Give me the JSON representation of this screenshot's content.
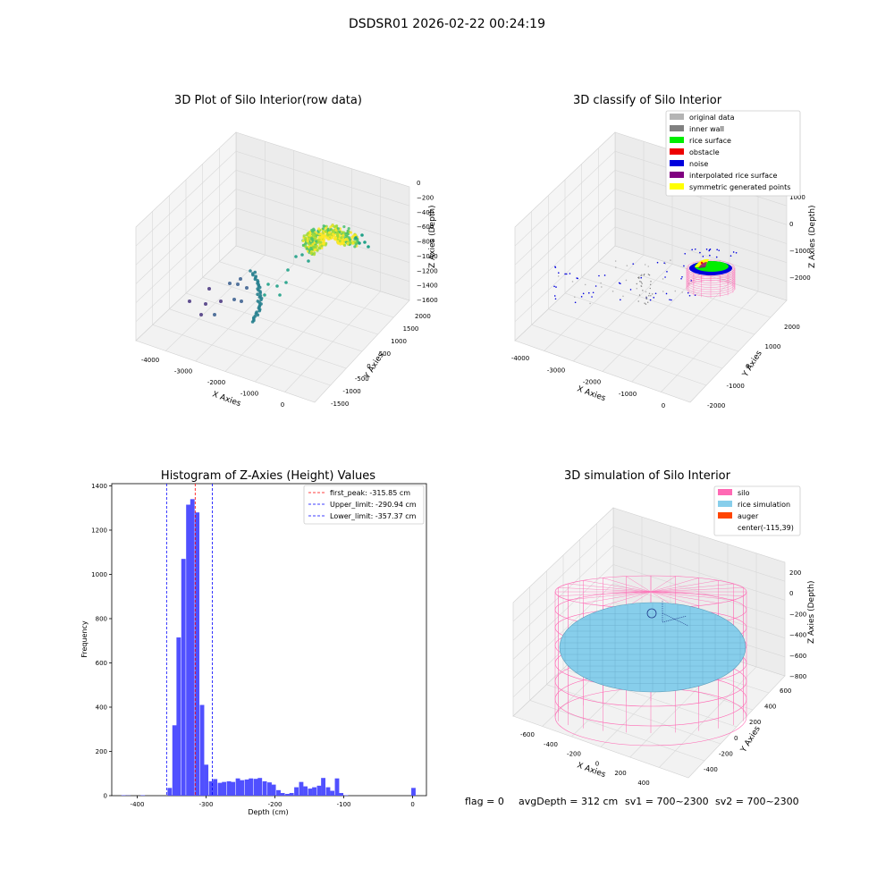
{
  "suptitle": "DSDSR01 2026-02-22 00:24:19",
  "status_line": {
    "flag": "flag = 0",
    "avg": "avgDepth = 312 cm",
    "sv1": "sv1 = 700~2300",
    "sv2": "sv2 = 700~2300"
  },
  "chart_data": [
    {
      "type": "scatter",
      "title": "3D Plot of Silo Interior(row data)",
      "xlabel": "X Axies",
      "ylabel": "Y Axies",
      "zlabel": "Z Axies (Depth)",
      "x_ticks": [
        "-4000",
        "-3000",
        "-2000",
        "-1000",
        "0"
      ],
      "y_ticks": [
        "-1500",
        "-1000",
        "-500",
        "0",
        "500",
        "1000",
        "1500",
        "2000"
      ],
      "z_ticks": [
        "0",
        "−200",
        "−400",
        "−600",
        "−800",
        "−1000",
        "−1200",
        "−1400",
        "−1600"
      ],
      "xlim": [
        -4300,
        300
      ],
      "ylim": [
        -1600,
        2100
      ],
      "zlim": [
        -1700,
        50
      ],
      "colormap": "viridis (by depth)"
    },
    {
      "type": "scatter",
      "title": "3D classify of Silo Interior",
      "xlabel": "X Axies",
      "ylabel": "Y Axies",
      "zlabel": "Z Axies (Depth)",
      "x_ticks": [
        "-4000",
        "-3000",
        "-2000",
        "-1000",
        "0"
      ],
      "y_ticks": [
        "-2000",
        "-1000",
        "0",
        "1000",
        "2000"
      ],
      "z_ticks": [
        "1000",
        "0",
        "−1000",
        "−2000"
      ],
      "legend_position": "top-right",
      "legend": [
        {
          "label": "original data",
          "color": "#b4b4b4"
        },
        {
          "label": "inner wall",
          "color": "#808080"
        },
        {
          "label": "rice surface",
          "color": "#00ee00"
        },
        {
          "label": "obstacle",
          "color": "#ee0000"
        },
        {
          "label": "noise",
          "color": "#0000dd"
        },
        {
          "label": "interpolated rice surface",
          "color": "#800080"
        },
        {
          "label": "symmetric generated points",
          "color": "#ffff00"
        }
      ]
    },
    {
      "type": "bar",
      "title": "Histogram of Z-Axies (Height) Values",
      "xlabel": "Depth (cm)",
      "ylabel": "Frequency",
      "xlim": [
        -437,
        20
      ],
      "ylim": [
        0,
        1410
      ],
      "x_ticks": [
        -400,
        -300,
        -200,
        -100,
        0
      ],
      "y_ticks": [
        0,
        200,
        400,
        600,
        800,
        1000,
        1200,
        1400
      ],
      "bar_color": "#5050ff",
      "bin_width": 6.3,
      "bins": [
        [
          -423,
          2
        ],
        [
          -416,
          1
        ],
        [
          -409,
          0
        ],
        [
          -402,
          0
        ],
        [
          -395,
          2
        ],
        [
          -389,
          0
        ],
        [
          -382,
          0
        ],
        [
          -375,
          0
        ],
        [
          -369,
          0
        ],
        [
          -362,
          0
        ],
        [
          -356,
          35
        ],
        [
          -349,
          318
        ],
        [
          -343,
          715
        ],
        [
          -336,
          1070
        ],
        [
          -329,
          1315
        ],
        [
          -323,
          1340
        ],
        [
          -316,
          1280
        ],
        [
          -309,
          410
        ],
        [
          -303,
          140
        ],
        [
          -296,
          65
        ],
        [
          -290,
          75
        ],
        [
          -283,
          58
        ],
        [
          -277,
          62
        ],
        [
          -270,
          65
        ],
        [
          -264,
          62
        ],
        [
          -257,
          78
        ],
        [
          -251,
          70
        ],
        [
          -244,
          73
        ],
        [
          -238,
          78
        ],
        [
          -231,
          76
        ],
        [
          -225,
          80
        ],
        [
          -218,
          65
        ],
        [
          -211,
          60
        ],
        [
          -205,
          50
        ],
        [
          -198,
          25
        ],
        [
          -192,
          12
        ],
        [
          -185,
          8
        ],
        [
          -179,
          12
        ],
        [
          -172,
          38
        ],
        [
          -165,
          62
        ],
        [
          -159,
          42
        ],
        [
          -152,
          32
        ],
        [
          -146,
          38
        ],
        [
          -139,
          45
        ],
        [
          -133,
          80
        ],
        [
          -126,
          38
        ],
        [
          -120,
          22
        ],
        [
          -113,
          78
        ],
        [
          -107,
          12
        ],
        [
          -100,
          2
        ],
        [
          -94,
          0
        ],
        [
          -87,
          0
        ],
        [
          -80,
          0
        ],
        [
          -74,
          0
        ],
        [
          -67,
          0
        ],
        [
          -61,
          0
        ],
        [
          -54,
          0
        ],
        [
          -48,
          0
        ],
        [
          -41,
          0
        ],
        [
          -34,
          0
        ],
        [
          -28,
          0
        ],
        [
          -21,
          0
        ],
        [
          -15,
          0
        ],
        [
          -8,
          0
        ],
        [
          -2,
          35
        ]
      ],
      "vlines": [
        {
          "label": "first_peak: -315.85 cm",
          "x": -315.85,
          "color": "#ff0000"
        },
        {
          "label": "Upper_limit: -290.94 cm",
          "x": -290.94,
          "color": "#0000ff"
        },
        {
          "label": "Lower_limit: -357.37 cm",
          "x": -357.37,
          "color": "#0000ff"
        }
      ],
      "legend_position": "top-right"
    },
    {
      "type": "surface",
      "title": "3D simulation of Silo Interior",
      "xlabel": "X Axies",
      "ylabel": "Y Axies",
      "zlabel": "Z Axies (Depth)",
      "x_ticks": [
        "-600",
        "-400",
        "-200",
        "0",
        "200",
        "400"
      ],
      "y_ticks": [
        "-400",
        "-200",
        "0",
        "200",
        "400",
        "600"
      ],
      "z_ticks": [
        "200",
        "0",
        "−200",
        "−400",
        "−600",
        "−800"
      ],
      "legend_position": "top-right",
      "legend": [
        {
          "label": "silo",
          "color": "#ff69b4"
        },
        {
          "label": "rice simulation",
          "color": "#87ceeb"
        },
        {
          "label": "auger",
          "color": "#ff4500"
        },
        {
          "label": "center(-115,39)",
          "color": ""
        }
      ]
    }
  ]
}
